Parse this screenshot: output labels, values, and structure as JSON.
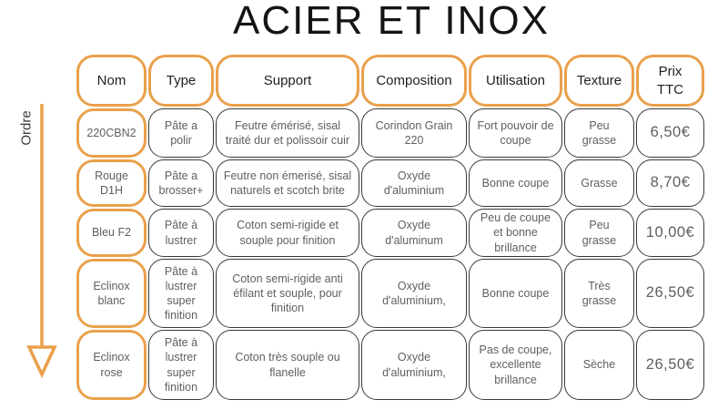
{
  "title": "ACIER ET INOX",
  "order_label": "Ordre",
  "colors": {
    "accent_orange": "#E9A04A",
    "cell_border": "#383838",
    "data_text": "#5F5F5F",
    "header_text": "#1F1F1F",
    "background": "#FFFFFF"
  },
  "chart_data": {
    "type": "table",
    "title": "ACIER ET INOX",
    "side_axis_label": "Ordre",
    "columns": [
      "Nom",
      "Type",
      "Support",
      "Composition",
      "Utilisation",
      "Texture",
      "Prix TTC"
    ],
    "rows": [
      [
        "220CBN2",
        "Pâte a polir",
        "Feutre émérisé, sisal traité dur et polissoir cuir",
        "Corindon Grain 220",
        "Fort pouvoir de coupe",
        "Peu grasse",
        "6,50€"
      ],
      [
        "Rouge D1H",
        "Pâte a brosser+",
        "Feutre non émerisé, sisal naturels et scotch brite",
        "Oxyde d'aluminium",
        "Bonne coupe",
        "Grasse",
        "8,70€"
      ],
      [
        "Bleu F2",
        "Pâte à lustrer",
        "Coton semi-rigide et souple pour finition",
        "Oxyde d'aluminum",
        "Peu de coupe et bonne brillance",
        "Peu grasse",
        "10,00€"
      ],
      [
        "Eclinox blanc",
        "Pâte à lustrer super finition",
        "Coton semi-rigide anti éfilant et souple, pour finition",
        "Oxyde d'aluminium,",
        "Bonne coupe",
        "Très grasse",
        "26,50€"
      ],
      [
        "Eclinox rose",
        "Pâte à lustrer super finition",
        "Coton très souple ou flanelle",
        "Oxyde d'aluminium,",
        "Pas de coupe, excellente brillance",
        "Sèche",
        "26,50€"
      ]
    ]
  }
}
